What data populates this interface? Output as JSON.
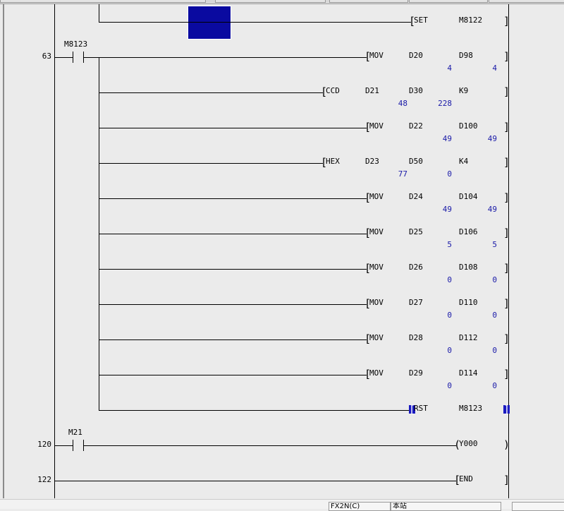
{
  "colors": {
    "background": "#ebebeb",
    "value_text": "#1a1aa8",
    "cursor": "#0a0aa0"
  },
  "rungs": [
    {
      "step": "",
      "contact": "",
      "instructions": [
        {
          "type": "func",
          "name": "SET",
          "operands": [
            "M8122"
          ],
          "values": []
        }
      ]
    },
    {
      "step": "63",
      "contact": "M8123",
      "instructions": [
        {
          "type": "func",
          "name": "MOV",
          "operands": [
            "D20",
            "D98"
          ],
          "values": [
            "4",
            "4"
          ]
        },
        {
          "type": "func",
          "name": "CCD",
          "operands": [
            "D21",
            "D30",
            "K9"
          ],
          "values": [
            "48",
            "228"
          ]
        },
        {
          "type": "func",
          "name": "MOV",
          "operands": [
            "D22",
            "D100"
          ],
          "values": [
            "49",
            "49"
          ]
        },
        {
          "type": "func",
          "name": "HEX",
          "operands": [
            "D23",
            "D50",
            "K4"
          ],
          "values": [
            "77",
            "0"
          ]
        },
        {
          "type": "func",
          "name": "MOV",
          "operands": [
            "D24",
            "D104"
          ],
          "values": [
            "49",
            "49"
          ]
        },
        {
          "type": "func",
          "name": "MOV",
          "operands": [
            "D25",
            "D106"
          ],
          "values": [
            "5",
            "5"
          ]
        },
        {
          "type": "func",
          "name": "MOV",
          "operands": [
            "D26",
            "D108"
          ],
          "values": [
            "0",
            "0"
          ]
        },
        {
          "type": "func",
          "name": "MOV",
          "operands": [
            "D27",
            "D110"
          ],
          "values": [
            "0",
            "0"
          ]
        },
        {
          "type": "func",
          "name": "MOV",
          "operands": [
            "D28",
            "D112"
          ],
          "values": [
            "0",
            "0"
          ]
        },
        {
          "type": "func",
          "name": "MOV",
          "operands": [
            "D29",
            "D114"
          ],
          "values": [
            "0",
            "0"
          ]
        },
        {
          "type": "func",
          "name": "RST",
          "operands": [
            "M8123"
          ],
          "values": [],
          "selected": true
        }
      ]
    },
    {
      "step": "120",
      "contact": "M21",
      "instructions": [
        {
          "type": "coil",
          "name": "Y000",
          "operands": [],
          "values": []
        }
      ]
    },
    {
      "step": "122",
      "contact": "",
      "instructions": [
        {
          "type": "end",
          "name": "END",
          "operands": [],
          "values": []
        }
      ]
    }
  ],
  "status_bar": {
    "plc_type": "FX2N(C)",
    "station": "本站",
    "extra": ""
  }
}
